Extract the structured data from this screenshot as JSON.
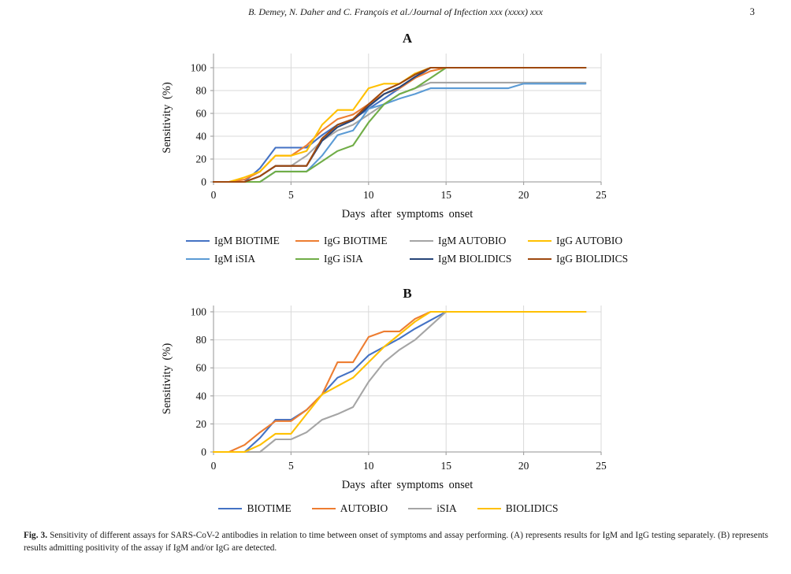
{
  "header": {
    "running_title": "B. Demey, N. Daher and C. François et al./Journal of Infection xxx (xxxx) xxx",
    "page_number": "3"
  },
  "figure": {
    "caption_label": "Fig. 3.",
    "caption_text": " Sensitivity of different assays for SARS-CoV-2 antibodies in relation to time between onset of symptoms and assay performing. (A) represents results for IgM and IgG testing separately. (B) represents results admitting positivity of the assay if IgM and/or IgG are detected."
  },
  "colors": {
    "blue": "#4472C4",
    "orange": "#ED7D31",
    "gray": "#A5A5A5",
    "gold": "#FFC000",
    "light_blue": "#5B9BD5",
    "green": "#70AD47",
    "navy": "#264478",
    "brown": "#9E480E",
    "grid": "#D9D9D9",
    "axis": "#A6A6A6"
  },
  "chart_data": [
    {
      "id": "A",
      "type": "line",
      "title": "A",
      "xlabel": "Days after symptoms onset",
      "ylabel": "Sensitivity (%)",
      "xlim": [
        0,
        25
      ],
      "ylim": [
        0,
        100
      ],
      "xticks": [
        0,
        5,
        10,
        15,
        20,
        25
      ],
      "yticks": [
        0,
        20,
        40,
        60,
        80,
        100
      ],
      "grid": true,
      "legend_position": "bottom",
      "x": [
        0,
        1,
        2,
        3,
        4,
        5,
        6,
        7,
        8,
        9,
        10,
        11,
        12,
        13,
        14,
        15,
        16,
        17,
        18,
        19,
        20,
        21,
        22,
        23,
        24
      ],
      "series": [
        {
          "name": "IgM BIOTIME",
          "color": "#4472C4",
          "values": [
            0,
            0,
            0,
            12,
            30,
            30,
            30,
            41,
            50,
            55,
            64,
            73,
            82,
            91,
            100,
            100,
            100,
            100,
            100,
            100,
            100,
            100,
            100,
            100,
            100
          ]
        },
        {
          "name": "IgG BIOTIME",
          "color": "#ED7D31",
          "values": [
            0,
            0,
            2,
            9,
            23,
            23,
            32,
            45,
            55,
            59,
            68,
            77,
            82,
            91,
            97,
            100,
            100,
            100,
            100,
            100,
            100,
            100,
            100,
            100,
            100
          ]
        },
        {
          "name": "IgM AUTOBIO",
          "color": "#A5A5A5",
          "values": [
            0,
            0,
            0,
            5,
            14,
            14,
            23,
            36,
            45,
            50,
            59,
            68,
            77,
            82,
            87,
            87,
            87,
            87,
            87,
            87,
            87,
            87,
            87,
            87,
            87
          ]
        },
        {
          "name": "IgG AUTOBIO",
          "color": "#FFC000",
          "values": [
            0,
            0,
            4,
            9,
            23,
            23,
            27,
            50,
            63,
            63,
            82,
            86,
            86,
            95,
            100,
            100,
            100,
            100,
            100,
            100,
            100,
            100,
            100,
            100,
            100
          ]
        },
        {
          "name": "IgM iSIA",
          "color": "#5B9BD5",
          "values": [
            0,
            0,
            0,
            0,
            9,
            9,
            9,
            23,
            41,
            45,
            64,
            68,
            73,
            77,
            82,
            82,
            82,
            82,
            82,
            82,
            86,
            86,
            86,
            86,
            86
          ]
        },
        {
          "name": "IgG iSIA",
          "color": "#70AD47",
          "values": [
            0,
            0,
            0,
            0,
            9,
            9,
            9,
            18,
            27,
            32,
            52,
            68,
            77,
            82,
            91,
            100,
            100,
            100,
            100,
            100,
            100,
            100,
            100,
            100,
            100
          ]
        },
        {
          "name": "IgM BIOLIDICS",
          "color": "#264478",
          "values": [
            0,
            0,
            0,
            5,
            14,
            14,
            14,
            36,
            48,
            54,
            66,
            77,
            83,
            92,
            100,
            100,
            100,
            100,
            100,
            100,
            100,
            100,
            100,
            100,
            100
          ]
        },
        {
          "name": "IgG BIOLIDICS",
          "color": "#9E480E",
          "values": [
            0,
            0,
            0,
            5,
            14,
            14,
            14,
            38,
            50,
            55,
            68,
            80,
            86,
            94,
            100,
            100,
            100,
            100,
            100,
            100,
            100,
            100,
            100,
            100,
            100
          ]
        }
      ]
    },
    {
      "id": "B",
      "type": "line",
      "title": "B",
      "xlabel": "Days after symptoms onset",
      "ylabel": "Sensitivity (%)",
      "xlim": [
        0,
        25
      ],
      "ylim": [
        0,
        100
      ],
      "xticks": [
        0,
        5,
        10,
        15,
        20,
        25
      ],
      "yticks": [
        0,
        20,
        40,
        60,
        80,
        100
      ],
      "grid": true,
      "legend_position": "bottom",
      "x": [
        0,
        1,
        2,
        3,
        4,
        5,
        6,
        7,
        8,
        9,
        10,
        11,
        12,
        13,
        14,
        15,
        16,
        17,
        18,
        19,
        20,
        21,
        22,
        23,
        24
      ],
      "series": [
        {
          "name": "BIOTIME",
          "color": "#4472C4",
          "values": [
            0,
            0,
            0,
            10,
            23,
            23,
            30,
            41,
            53,
            58,
            69,
            75,
            81,
            88,
            94,
            100,
            100,
            100,
            100,
            100,
            100,
            100,
            100,
            100,
            100
          ]
        },
        {
          "name": "AUTOBIO",
          "color": "#ED7D31",
          "values": [
            0,
            0,
            5,
            14,
            22,
            22,
            30,
            41,
            64,
            64,
            82,
            86,
            86,
            95,
            100,
            100,
            100,
            100,
            100,
            100,
            100,
            100,
            100,
            100,
            100
          ]
        },
        {
          "name": "iSIA",
          "color": "#A5A5A5",
          "values": [
            0,
            0,
            0,
            0,
            9,
            9,
            14,
            23,
            27,
            32,
            50,
            64,
            73,
            80,
            90,
            100,
            100,
            100,
            100,
            100,
            100,
            100,
            100,
            100,
            100
          ]
        },
        {
          "name": "BIOLIDICS",
          "color": "#FFC000",
          "values": [
            0,
            0,
            0,
            5,
            13,
            13,
            27,
            41,
            47,
            53,
            64,
            75,
            84,
            93,
            100,
            100,
            100,
            100,
            100,
            100,
            100,
            100,
            100,
            100,
            100
          ]
        }
      ]
    }
  ]
}
